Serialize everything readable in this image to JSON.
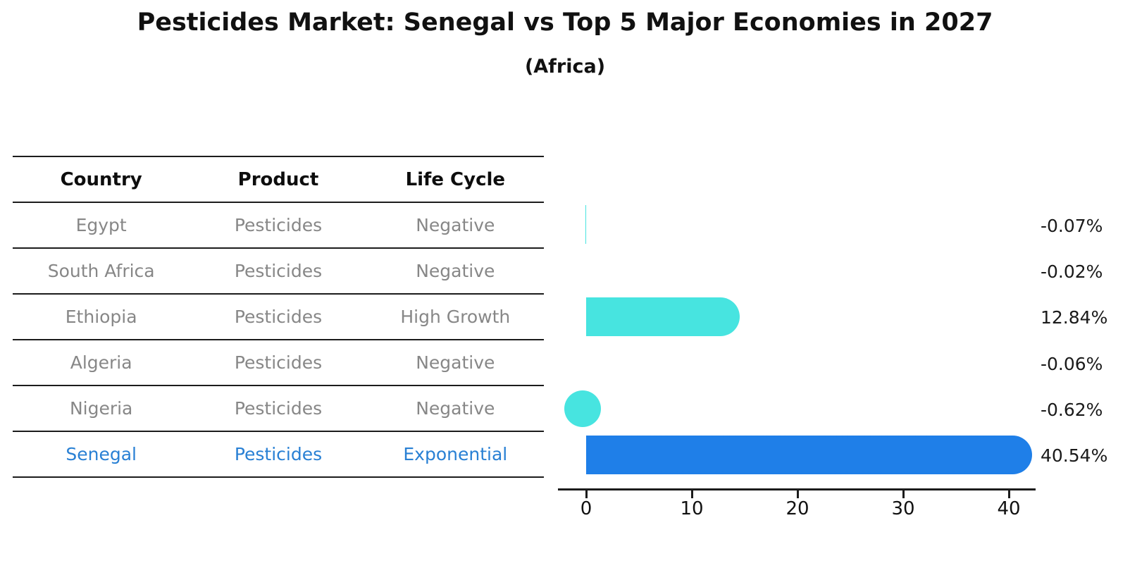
{
  "title": "Pesticides Market: Senegal vs Top 5 Major Economies in 2027",
  "subtitle": "(Africa)",
  "table": {
    "headers": [
      "Country",
      "Product",
      "Life Cycle"
    ],
    "rows": [
      {
        "country": "Egypt",
        "product": "Pesticides",
        "life_cycle": "Negative",
        "highlight": false
      },
      {
        "country": "South Africa",
        "product": "Pesticides",
        "life_cycle": "Negative",
        "highlight": false
      },
      {
        "country": "Ethiopia",
        "product": "Pesticides",
        "life_cycle": "High Growth",
        "highlight": false
      },
      {
        "country": "Algeria",
        "product": "Pesticides",
        "life_cycle": "Negative",
        "highlight": false
      },
      {
        "country": "Nigeria",
        "product": "Pesticides",
        "life_cycle": "Negative",
        "highlight": false
      },
      {
        "country": "Senegal",
        "product": "Pesticides",
        "life_cycle": "Exponential",
        "highlight": true
      }
    ]
  },
  "chart_data": {
    "type": "bar",
    "orientation": "horizontal",
    "title": "Pesticides Market: Senegal vs Top 5 Major Economies in 2027",
    "subtitle": "(Africa)",
    "categories": [
      "Egypt",
      "South Africa",
      "Ethiopia",
      "Algeria",
      "Nigeria",
      "Senegal"
    ],
    "values": [
      -0.07,
      -0.02,
      12.84,
      -0.06,
      -0.62,
      40.54
    ],
    "value_labels": [
      "-0.07%",
      "-0.02%",
      "12.84%",
      "-0.06%",
      "-0.62%",
      "40.54%"
    ],
    "xlabel": "",
    "ylabel": "",
    "xlim": [
      -2.8,
      42.5
    ],
    "xticks": [
      "0",
      "10",
      "20",
      "30",
      "40"
    ],
    "grid": false,
    "legend": "none",
    "bar_styles": [
      "hairline",
      "none",
      "pill",
      "none",
      "circle",
      "pill-dotted"
    ],
    "bar_colors": [
      "#47E4E0",
      "#47E4E0",
      "#47E4E0",
      "#47E4E0",
      "#47E4E0",
      "#1F7FE8"
    ],
    "highlight_index": 5,
    "highlight_color": "#1F7FE8",
    "default_color": "#47E4E0",
    "highlight_text_color": "#2980D4"
  }
}
